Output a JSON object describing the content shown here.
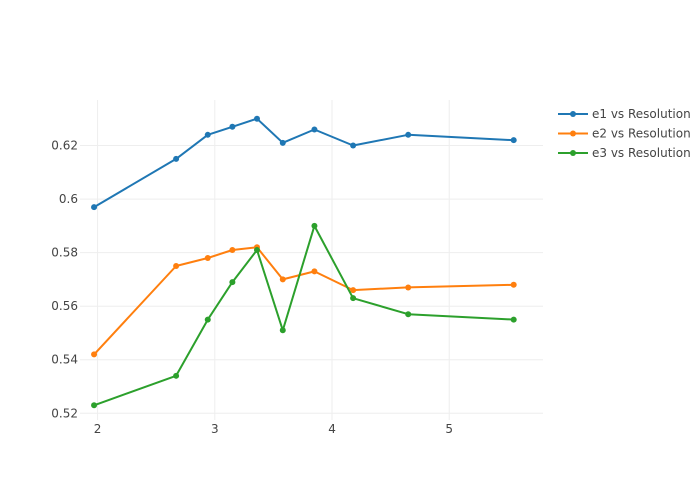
{
  "chart_data": {
    "type": "line",
    "title": "",
    "xlabel": "",
    "ylabel": "",
    "xlim": [
      1.85,
      5.8
    ],
    "ylim": [
      0.5175,
      0.637
    ],
    "x_ticks": [
      2,
      3,
      4,
      5
    ],
    "x_tick_labels": [
      "2",
      "3",
      "4",
      "5"
    ],
    "y_ticks": [
      0.52,
      0.54,
      0.56,
      0.58,
      0.6,
      0.62
    ],
    "y_tick_labels": [
      "0.52",
      "0.54",
      "0.56",
      "0.58",
      "0.6",
      "0.62"
    ],
    "grid": true,
    "legend_position": "top-right",
    "x": [
      1.97,
      2.67,
      2.94,
      3.15,
      3.36,
      3.58,
      3.85,
      4.18,
      4.65,
      5.55
    ],
    "series": [
      {
        "name": "e1 vs Resolution",
        "color": "#1f77b4",
        "values": [
          0.597,
          0.615,
          0.624,
          0.627,
          0.63,
          0.621,
          0.626,
          0.62,
          0.624,
          0.622
        ]
      },
      {
        "name": "e2 vs Resolution",
        "color": "#ff7f0e",
        "values": [
          0.542,
          0.575,
          0.578,
          0.581,
          0.582,
          0.57,
          0.573,
          0.566,
          0.567,
          0.568
        ]
      },
      {
        "name": "e3 vs Resolution",
        "color": "#2ca02c",
        "values": [
          0.523,
          0.534,
          0.555,
          0.569,
          0.581,
          0.551,
          0.59,
          0.563,
          0.557,
          0.555
        ]
      }
    ]
  }
}
